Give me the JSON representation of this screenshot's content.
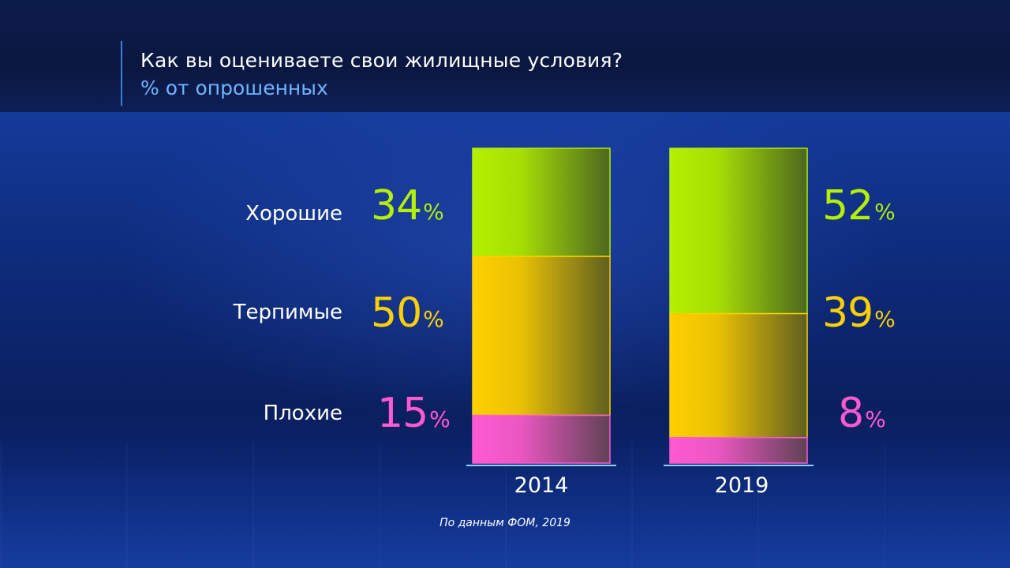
{
  "header": {
    "title": "Как вы оцениваете свои жилищные условия?",
    "subtitle": "% от опрошенных"
  },
  "source": "По данным ФОМ, 2019",
  "colors": {
    "good": "#b4f000",
    "tolerable": "#ffd000",
    "bad": "#ff5ad2"
  },
  "chart_data": {
    "type": "bar",
    "stacked": true,
    "categories": [
      "2014",
      "2019"
    ],
    "series": [
      {
        "name": "Хорошие",
        "values": [
          34,
          52
        ],
        "color": "#b4f000"
      },
      {
        "name": "Терпимые",
        "values": [
          50,
          39
        ],
        "color": "#ffd000"
      },
      {
        "name": "Плохие",
        "values": [
          15,
          8
        ],
        "color": "#ff5ad2"
      }
    ],
    "unit": "%"
  }
}
